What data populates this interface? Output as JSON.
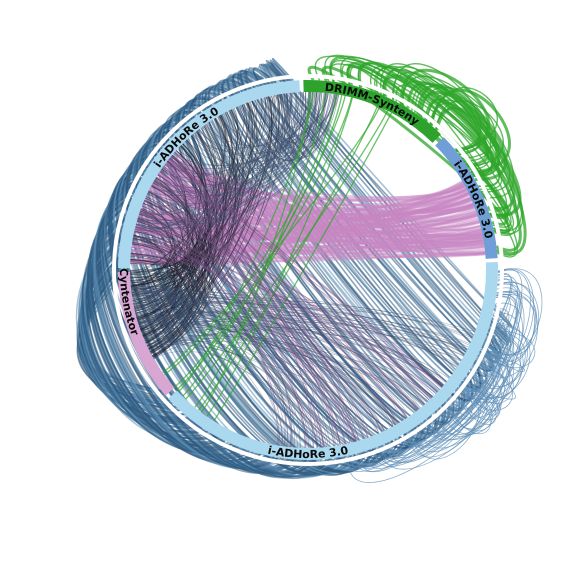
{
  "diagram": {
    "type": "circos-synteny-plot",
    "segments": [
      {
        "label": "i-ADHoRe 3.0",
        "color": "#a9d8ef",
        "role": "left-upper"
      },
      {
        "label": "DRIMM-Synteny",
        "color": "#2da32d",
        "role": "top"
      },
      {
        "label": "i-ADHoRe 3.0",
        "color": "#6f9fd6",
        "role": "right-upper"
      },
      {
        "label": "i-ADHoRe 3.0",
        "color": "#a9d8ef",
        "role": "bottom"
      },
      {
        "label": "Cyntenator",
        "color": "#d8a6d3",
        "role": "left"
      }
    ],
    "link_colors": {
      "outer_blue": "#2e5a80",
      "outer_blue_light": "#5f8fb6",
      "green": "#2ea62a",
      "pink": "#c887c3",
      "dark": "#1f2230",
      "slate": "#3f4f6e"
    }
  }
}
